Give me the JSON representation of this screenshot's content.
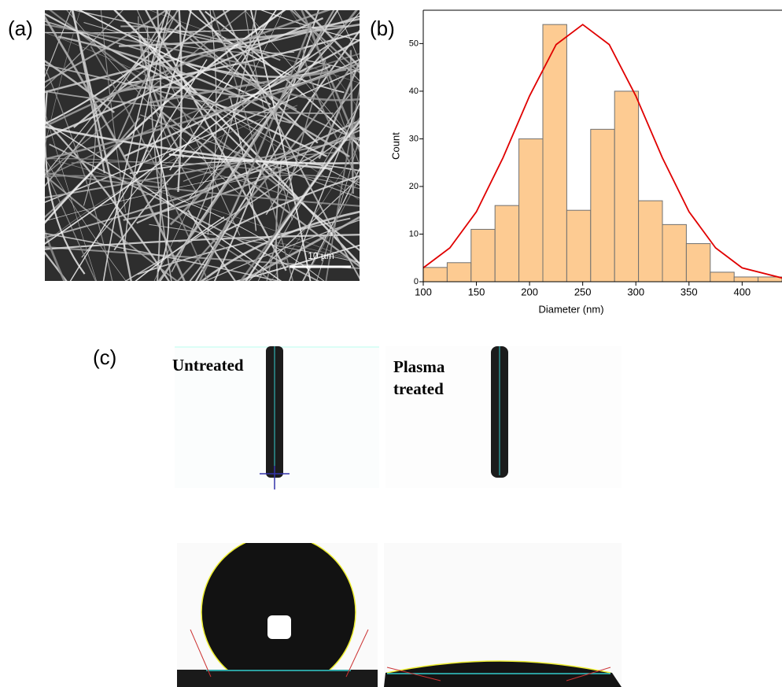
{
  "figure": {
    "panel_labels": [
      "(a)",
      "(b)",
      "(c)"
    ],
    "scale_bar": "10 µm",
    "untreated": "Untreated",
    "plasma": "Plasma treated"
  },
  "chart_data": {
    "type": "histogram",
    "xlabel": "Diameter (nm)",
    "ylabel": "Count",
    "bins": [
      100,
      122.5,
      145,
      167.5,
      190,
      212.5,
      235,
      257.5,
      280,
      302.5,
      325,
      347.5,
      370,
      392.5,
      415,
      437.5
    ],
    "values": [
      3,
      4,
      11,
      16,
      30,
      54,
      15,
      32,
      40,
      17,
      12,
      8,
      2,
      1,
      1
    ],
    "color": "#fdcb92",
    "edgecolor": "#707070",
    "fit": {
      "color": "#e00000",
      "x": [
        100,
        125,
        150,
        175,
        200,
        225,
        250,
        275,
        300,
        325,
        350,
        375,
        400,
        437.5
      ],
      "values": [
        2.9,
        7.1,
        14.7,
        26,
        39,
        49.8,
        54,
        49.8,
        39,
        26,
        14.7,
        7.1,
        2.9,
        0.8
      ]
    },
    "xlim": [
      100,
      437.5
    ],
    "ylim": [
      0,
      57
    ],
    "xticks": [
      100,
      150,
      200,
      250,
      300,
      350,
      400
    ],
    "yticks": [
      0,
      10,
      20,
      30,
      40,
      50
    ]
  }
}
